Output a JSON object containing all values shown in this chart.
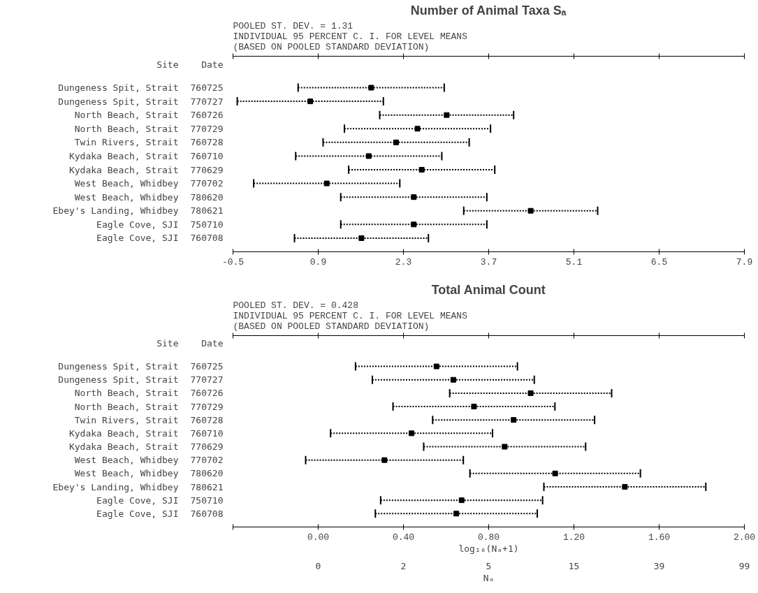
{
  "chart_data": [
    {
      "type": "scatter",
      "orientation": "horizontal",
      "marker": "square",
      "title": "Number of Animal Taxa Sₐ",
      "subtitle": "POOLED ST. DEV. = 1.31\nINDIVIDUAL 95 PERCENT C. I. FOR LEVEL MEANS\n(BASED ON POOLED STANDARD DEVIATION)",
      "ylabel": "Site",
      "y2label": "Date",
      "categories": [
        "Dungeness Spit, Strait",
        "Dungeness Spit, Strait",
        "North Beach, Strait",
        "North Beach, Strait",
        "Twin Rivers, Strait",
        "Kydaka Beach, Strait",
        "Kydaka Beach, Strait",
        "West Beach, Whidbey",
        "West Beach, Whidbey",
        "Ebey's Landing, Whidbey",
        "Eagle Cove, SJI",
        "Eagle Cove, SJI"
      ],
      "y2_categories": [
        "760725",
        "770727",
        "760726",
        "770729",
        "760728",
        "760710",
        "770629",
        "770702",
        "780620",
        "780621",
        "750710",
        "760708"
      ],
      "values": [
        1.77,
        0.77,
        3.01,
        2.53,
        2.18,
        1.73,
        2.6,
        1.04,
        2.47,
        4.39,
        2.47,
        1.61
      ],
      "errors": [
        1.2,
        1.2,
        1.1,
        1.2,
        1.2,
        1.2,
        1.2,
        1.2,
        1.2,
        1.1,
        1.2,
        1.1
      ],
      "color": "#000000",
      "xlim": [
        -0.5,
        7.9
      ],
      "xticks": [
        -0.5,
        0.9,
        2.3,
        3.7,
        5.1,
        6.5,
        7.9
      ]
    },
    {
      "type": "scatter",
      "orientation": "horizontal",
      "marker": "square",
      "title": "Total Animal Count",
      "subtitle": "POOLED ST. DEV. = 0.428\nINDIVIDUAL 95 PERCENT C. I. FOR LEVEL MEANS\n(BASED ON POOLED STANDARD DEVIATION)",
      "ylabel": "Site",
      "y2label": "Date",
      "xlabel": "log₁₀(Nₐ+1)",
      "x2label": "Nₐ",
      "categories": [
        "Dungeness Spit, Strait",
        "Dungeness Spit, Strait",
        "North Beach, Strait",
        "North Beach, Strait",
        "Twin Rivers, Strait",
        "Kydaka Beach, Strait",
        "Kydaka Beach, Strait",
        "West Beach, Whidbey",
        "West Beach, Whidbey",
        "Ebey's Landing, Whidbey",
        "Eagle Cove, SJI",
        "Eagle Cove, SJI"
      ],
      "y2_categories": [
        "760725",
        "770727",
        "760726",
        "770729",
        "760728",
        "760710",
        "770629",
        "770702",
        "780620",
        "780621",
        "750710",
        "760708"
      ],
      "values": [
        0.555,
        0.634,
        0.997,
        0.731,
        0.917,
        0.438,
        0.875,
        0.311,
        1.112,
        1.439,
        0.673,
        0.648
      ],
      "errors": [
        0.38,
        0.38,
        0.38,
        0.38,
        0.38,
        0.38,
        0.38,
        0.37,
        0.4,
        0.38,
        0.38,
        0.38
      ],
      "color": "#000000",
      "xlim": [
        -0.4,
        2.0
      ],
      "xticks": [
        {
          "value": -0.4,
          "label": null
        },
        {
          "value": 0.0,
          "label": "0.00"
        },
        {
          "value": 0.4,
          "label": "0.40"
        },
        {
          "value": 0.8,
          "label": "0.80"
        },
        {
          "value": 1.2,
          "label": "1.20"
        },
        {
          "value": 1.6,
          "label": "1.60"
        },
        {
          "value": 2.0,
          "label": "2.00"
        }
      ],
      "annotations": [
        "0",
        "2",
        "5",
        "15",
        "39",
        "99"
      ]
    }
  ]
}
